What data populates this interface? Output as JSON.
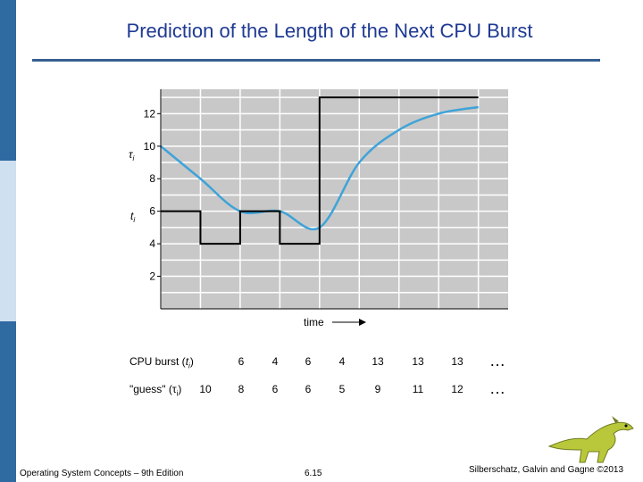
{
  "slide": {
    "title": "Prediction of the Length of the Next CPU Burst",
    "footer_left": "Operating System Concepts – 9th Edition",
    "footer_center": "6.15",
    "footer_right": "Silberschatz, Galvin and Gagne ©2013"
  },
  "chart_data": {
    "type": "line",
    "title": "",
    "xlabel": "time",
    "ylabel_series": [
      "τi",
      "ti"
    ],
    "yticks": [
      2,
      4,
      6,
      8,
      10,
      12
    ],
    "ylim": [
      0,
      13.5
    ],
    "xlim": [
      0,
      8.75
    ],
    "grid": true,
    "series": [
      {
        "name": "ti",
        "style": "step",
        "color": "#000000",
        "x": [
          0,
          1,
          2,
          3,
          4,
          5,
          6,
          7,
          8
        ],
        "values": [
          6,
          4,
          6,
          4,
          13,
          13,
          13,
          13,
          13
        ]
      },
      {
        "name": "τi",
        "style": "smooth",
        "color": "#3fa3d8",
        "x": [
          0,
          1,
          2,
          3,
          4,
          5,
          6,
          7,
          8
        ],
        "values": [
          10,
          8,
          6,
          6,
          5,
          9,
          11,
          12,
          12.4
        ]
      }
    ]
  },
  "table": {
    "rows": [
      {
        "label": "CPU burst (ti)",
        "values": [
          "6",
          "4",
          "6",
          "4",
          "13",
          "13",
          "13"
        ],
        "ellipsis": "…"
      },
      {
        "label": "\"guess\" (τi)",
        "values": [
          "10",
          "8",
          "6",
          "6",
          "5",
          "9",
          "11",
          "12"
        ],
        "ellipsis": "…"
      }
    ]
  }
}
